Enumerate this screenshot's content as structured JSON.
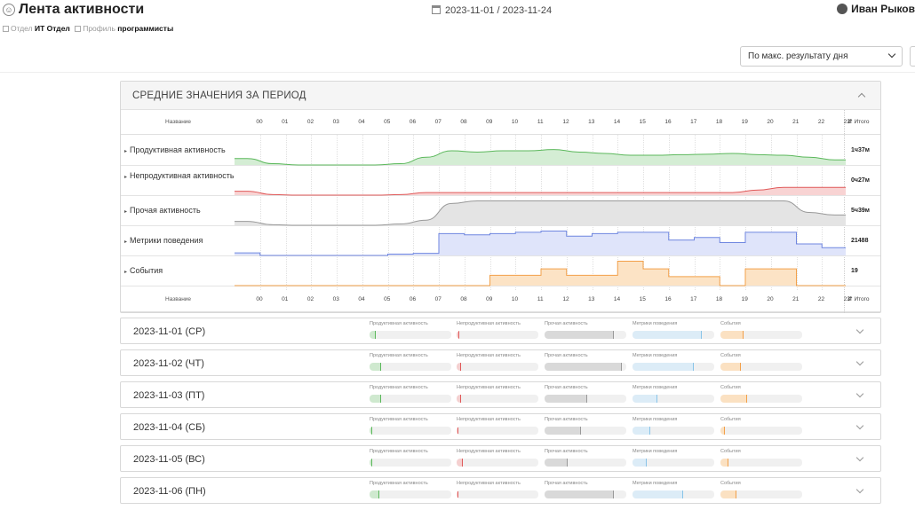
{
  "header": {
    "title": "Лента активности",
    "period": "2023-11-01 / 2023-11-24",
    "user": "Иван Рыков"
  },
  "breadcrumb": {
    "dept_label": "Отдел",
    "dept_value": "ИТ Отдел",
    "profile_label": "Профиль",
    "profile_value": "программисты"
  },
  "sort": {
    "value": "По макс. результату дня"
  },
  "summary": {
    "title": "СРЕДНИЕ ЗНАЧЕНИЯ ЗА ПЕРИОД",
    "name_header": "Название",
    "total_header": "Итого",
    "hours": [
      "00",
      "01",
      "02",
      "03",
      "04",
      "05",
      "06",
      "07",
      "08",
      "09",
      "10",
      "11",
      "12",
      "13",
      "14",
      "15",
      "16",
      "17",
      "18",
      "19",
      "20",
      "21",
      "22",
      "23"
    ],
    "rows": [
      {
        "label": "Продуктивная активность",
        "total": "1ч37м",
        "kind": "smooth",
        "stroke": "#5cb85c",
        "fill": "#d4edd4",
        "values": [
          0.25,
          0.05,
          0,
          0,
          0,
          0,
          0.05,
          0.3,
          0.55,
          0.5,
          0.55,
          0.55,
          0.6,
          0.5,
          0.45,
          0.38,
          0.38,
          0.4,
          0.42,
          0.45,
          0.4,
          0.38,
          0.3,
          0.2
        ]
      },
      {
        "label": "Непродуктивная активность",
        "total": "0ч27м",
        "kind": "smooth",
        "stroke": "#e05a5a",
        "fill": "#f8d3d3",
        "values": [
          0.15,
          0.02,
          0,
          0,
          0,
          0,
          0.02,
          0.1,
          0.1,
          0.1,
          0.1,
          0.1,
          0.1,
          0.1,
          0.1,
          0.1,
          0.1,
          0.1,
          0.1,
          0.1,
          0.2,
          0.3,
          0.3,
          0.3
        ]
      },
      {
        "label": "Прочая активность",
        "total": "5ч39м",
        "kind": "smooth",
        "stroke": "#999999",
        "fill": "#e4e4e4",
        "values": [
          0.15,
          0.02,
          0,
          0,
          0,
          0,
          0.05,
          0.2,
          0.85,
          0.95,
          0.95,
          0.95,
          0.95,
          0.95,
          0.95,
          0.95,
          0.95,
          0.95,
          0.95,
          0.95,
          0.95,
          0.95,
          0.5,
          0.4
        ]
      },
      {
        "label": "Метрики поведения",
        "total": "21488",
        "kind": "step",
        "stroke": "#6f86e0",
        "fill": "#dfe4fa",
        "values": [
          0.1,
          0,
          0,
          0,
          0,
          0,
          0.05,
          0.08,
          0.85,
          0.8,
          0.85,
          0.9,
          0.95,
          0.75,
          0.85,
          0.9,
          0.9,
          0.6,
          0.7,
          0.5,
          0.9,
          0.9,
          0.45,
          0.3
        ]
      },
      {
        "label": "События",
        "total": "19",
        "kind": "step",
        "stroke": "#f2a04a",
        "fill": "#fce3c5",
        "values": [
          0,
          0,
          0,
          0,
          0,
          0,
          0,
          0,
          0,
          0,
          0.4,
          0.4,
          0.65,
          0.4,
          0.4,
          0.95,
          0.65,
          0.35,
          0.35,
          0,
          0.65,
          0.65,
          0,
          0
        ]
      }
    ]
  },
  "metric_labels": [
    "Продуктивная активность",
    "Непродуктивная активность",
    "Прочая активность",
    "Метрики поведения",
    "События"
  ],
  "metric_colors": [
    "#5cb85c",
    "#e05a5a",
    "#999999",
    "#89c4e8",
    "#f2a04a"
  ],
  "metric_fill_colors": [
    "#cfe9cf",
    "#f5d0d0",
    "#d9d9d9",
    "#dcecf7",
    "#fbe1c2"
  ],
  "days": [
    {
      "date": "2023-11-01 (СР)",
      "levels": [
        0.08,
        0.03,
        0.85,
        0.85,
        0.28
      ]
    },
    {
      "date": "2023-11-02 (ЧТ)",
      "levels": [
        0.14,
        0.05,
        0.95,
        0.75,
        0.25
      ]
    },
    {
      "date": "2023-11-03 (ПТ)",
      "levels": [
        0.14,
        0.05,
        0.52,
        0.3,
        0.33
      ]
    },
    {
      "date": "2023-11-04 (СБ)",
      "levels": [
        0.03,
        0.02,
        0.45,
        0.22,
        0.05
      ]
    },
    {
      "date": "2023-11-05 (ВС)",
      "levels": [
        0.03,
        0.08,
        0.28,
        0.17,
        0.1
      ]
    },
    {
      "date": "2023-11-06 (ПН)",
      "levels": [
        0.12,
        0.02,
        0.85,
        0.62,
        0.2
      ]
    }
  ]
}
